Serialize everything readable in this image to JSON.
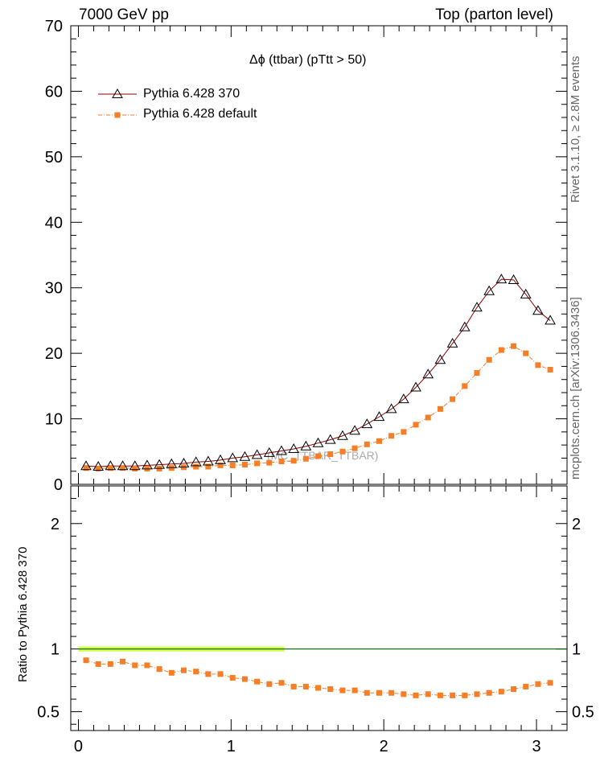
{
  "header": {
    "left": "7000 GeV pp",
    "right": "Top (parton level)"
  },
  "side_text": {
    "rivet": "Rivet 3.1.10, ≥ 2.8M events",
    "mcplots": "mcplots.cern.ch [arXiv:1306.3436]"
  },
  "chart_data": [
    {
      "type": "line",
      "title": "Δϕ (ttbar) (pTtt > 50)",
      "watermark": "(MC_TTBAR_TTBAR)",
      "xlim": [
        -0.05,
        3.2
      ],
      "ylim": [
        0,
        70
      ],
      "yticks": [
        0,
        10,
        20,
        30,
        40,
        50,
        60,
        70
      ],
      "legend_position": "top-left",
      "x": [
        0.05,
        0.13,
        0.21,
        0.29,
        0.37,
        0.45,
        0.53,
        0.61,
        0.69,
        0.77,
        0.85,
        0.93,
        1.01,
        1.09,
        1.17,
        1.25,
        1.33,
        1.41,
        1.49,
        1.57,
        1.65,
        1.73,
        1.81,
        1.89,
        1.97,
        2.05,
        2.13,
        2.21,
        2.29,
        2.37,
        2.45,
        2.53,
        2.61,
        2.69,
        2.77,
        2.85,
        2.93,
        3.01,
        3.09
      ],
      "series": [
        {
          "name": "Pythia 6.428 370",
          "color": "#8b0000",
          "marker": "open-triangle",
          "line": "solid",
          "values": [
            2.8,
            2.7,
            2.8,
            2.8,
            2.8,
            2.9,
            3.0,
            3.1,
            3.2,
            3.4,
            3.5,
            3.7,
            4.0,
            4.2,
            4.5,
            4.8,
            5.1,
            5.4,
            5.8,
            6.3,
            6.8,
            7.4,
            8.2,
            9.2,
            10.3,
            11.5,
            13.0,
            14.8,
            16.8,
            19.0,
            21.5,
            24.0,
            27.0,
            29.5,
            31.3,
            31.2,
            29.0,
            26.5,
            25.0
          ]
        },
        {
          "name": "Pythia 6.428 default",
          "color": "#f57e26",
          "marker": "filled-square",
          "line": "dash-dot",
          "values": [
            2.5,
            2.4,
            2.5,
            2.5,
            2.4,
            2.4,
            2.4,
            2.5,
            2.6,
            2.7,
            2.7,
            2.9,
            2.9,
            3.0,
            3.2,
            3.3,
            3.5,
            3.6,
            3.9,
            4.3,
            4.6,
            5.0,
            5.5,
            6.1,
            6.6,
            7.4,
            8.0,
            9.1,
            10.2,
            11.5,
            13.0,
            15.0,
            17.0,
            19.0,
            20.5,
            21.1,
            20.0,
            18.2,
            17.5
          ]
        }
      ]
    },
    {
      "type": "line",
      "ylabel": "Ratio to Pythia 6.428 370",
      "xlim": [
        -0.05,
        3.2
      ],
      "xticks": [
        0,
        1,
        2,
        3
      ],
      "ylim": [
        0.35,
        2.3
      ],
      "yticks": [
        0.5,
        1,
        2
      ],
      "x": [
        0.05,
        0.13,
        0.21,
        0.29,
        0.37,
        0.45,
        0.53,
        0.61,
        0.69,
        0.77,
        0.85,
        0.93,
        1.01,
        1.09,
        1.17,
        1.25,
        1.33,
        1.41,
        1.49,
        1.57,
        1.65,
        1.73,
        1.81,
        1.89,
        1.97,
        2.05,
        2.13,
        2.21,
        2.29,
        2.37,
        2.45,
        2.53,
        2.61,
        2.69,
        2.77,
        2.85,
        2.93,
        3.01,
        3.09
      ],
      "series": [
        {
          "name": "Pythia 6.428 370",
          "color": "#006400",
          "band_color": "#ccff33",
          "reference": 1.0
        },
        {
          "name": "Pythia 6.428 default",
          "color": "#f57e26",
          "values": [
            0.91,
            0.88,
            0.88,
            0.9,
            0.87,
            0.87,
            0.84,
            0.81,
            0.83,
            0.82,
            0.8,
            0.8,
            0.77,
            0.76,
            0.74,
            0.72,
            0.73,
            0.7,
            0.7,
            0.69,
            0.68,
            0.67,
            0.67,
            0.65,
            0.65,
            0.65,
            0.64,
            0.63,
            0.64,
            0.63,
            0.63,
            0.63,
            0.64,
            0.65,
            0.66,
            0.68,
            0.7,
            0.72,
            0.73
          ]
        }
      ]
    }
  ]
}
